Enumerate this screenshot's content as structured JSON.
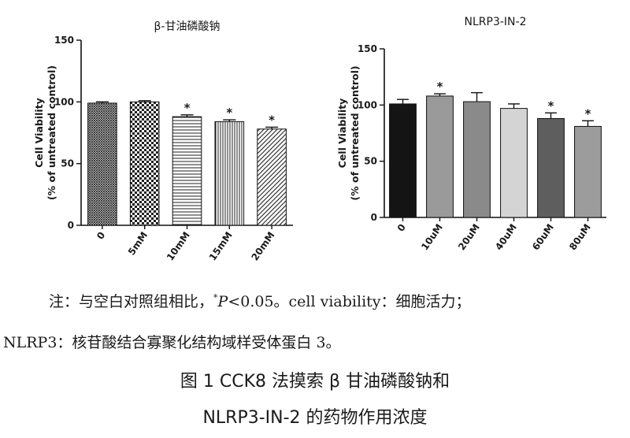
{
  "chart_data": [
    {
      "type": "bar",
      "title": "β-甘油磷酸钠",
      "ylabel": "Cell Viability",
      "ylabel2": "(% of untreated control)",
      "ylim": [
        0,
        150
      ],
      "yticks": [
        "0",
        "50",
        "100",
        "150"
      ],
      "categories": [
        "0",
        "5mM",
        "10mM",
        "15mM",
        "20mM"
      ],
      "values": [
        99,
        100,
        88,
        84,
        78
      ],
      "errors": [
        1,
        1,
        1.5,
        1.5,
        1.5
      ],
      "significant": [
        false,
        false,
        true,
        true,
        true
      ],
      "marker": "*",
      "patterns": [
        "crosshatch-dense",
        "checker",
        "horizontal-lines",
        "vertical-lines",
        "diagonal-lines"
      ]
    },
    {
      "type": "bar",
      "title": "NLRP3-IN-2",
      "ylabel": "Cell Viability",
      "ylabel2": "(% of untreated control)",
      "ylim": [
        0,
        150
      ],
      "yticks": [
        "0",
        "50",
        "100",
        "150"
      ],
      "categories": [
        "0",
        "10uM",
        "20uM",
        "40uM",
        "60uM",
        "80uM"
      ],
      "values": [
        101,
        108,
        103,
        97,
        88,
        81
      ],
      "errors": [
        4,
        2,
        8,
        4,
        5,
        5
      ],
      "significant": [
        false,
        true,
        false,
        false,
        true,
        true
      ],
      "marker": "*",
      "colors": [
        "#141414",
        "#9a9a9a",
        "#8a8a8a",
        "#d4d4d4",
        "#5e5e5e",
        "#9c9c9c"
      ]
    }
  ],
  "note": {
    "line1_prefix": "注：与空白对照组相比，",
    "sup": "*",
    "p_symbol": "P",
    "line1_suffix": "<0.05。cell viability：细胞活力；",
    "line2": "NLRP3：核苷酸结合寡聚化结构域样受体蛋白 3。"
  },
  "caption": {
    "line1": "图 1   CCK8 法摸索 β 甘油磷酸钠和",
    "line2": "NLRP3-IN-2 的药物作用浓度"
  }
}
